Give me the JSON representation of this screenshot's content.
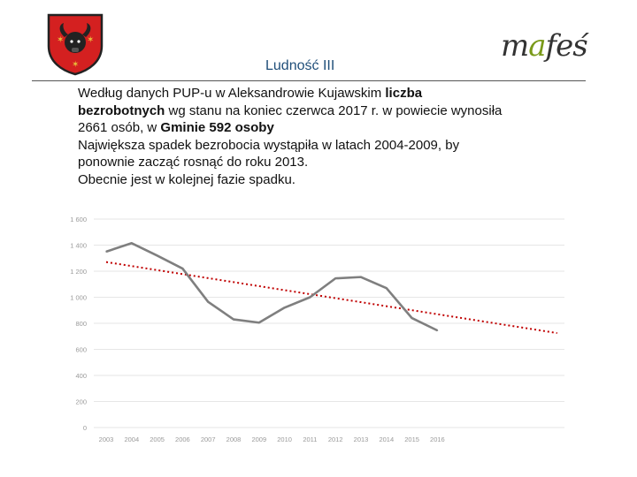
{
  "header": {
    "title": "Ludność III",
    "logo_text": "mafeś"
  },
  "body_text": {
    "line1_a": "Według danych PUP-u w Aleksandrowie Kujawskim ",
    "line1_b": "liczba",
    "line2_a": "bezrobotnych",
    "line2_b": " wg stanu na koniec czerwca 2017 r.  w powiecie wynosiła",
    "line3_a": "2661 osób, w ",
    "line3_b": "Gminie 592 osoby",
    "line4": "Największa spadek bezrobocia wystąpiła w latach 2004-2009, by",
    "line5": "ponownie zacząć rosnąć do roku 2013.",
    "line6": "Obecnie jest w kolejnej fazie spadku."
  },
  "colors": {
    "series": "#7f7f7f",
    "trend": "#c00000",
    "crest_red": "#d42020",
    "crest_gold": "#e8c23a",
    "logo_accent": "#7a9a1a"
  },
  "chart_data": {
    "type": "line",
    "categories": [
      "2003",
      "2004",
      "2005",
      "2006",
      "2007",
      "2008",
      "2009",
      "2010",
      "2011",
      "2012",
      "2013",
      "2014",
      "2015",
      "2016"
    ],
    "series": [
      {
        "values": [
          1350,
          1415,
          1320,
          1220,
          965,
          830,
          805,
          920,
          1000,
          1145,
          1155,
          1070,
          840,
          745
        ]
      }
    ],
    "trendline": {
      "type": "linear",
      "extends_to_x_index": 17.7,
      "start_value": 1270,
      "end_value": 725
    },
    "ylim": [
      0,
      1600
    ],
    "yticks": [
      "0",
      "200",
      "400",
      "600",
      "800",
      "1 000",
      "1 200",
      "1 400",
      "1 600"
    ],
    "grid": true,
    "title": "",
    "xlabel": "",
    "ylabel": ""
  }
}
